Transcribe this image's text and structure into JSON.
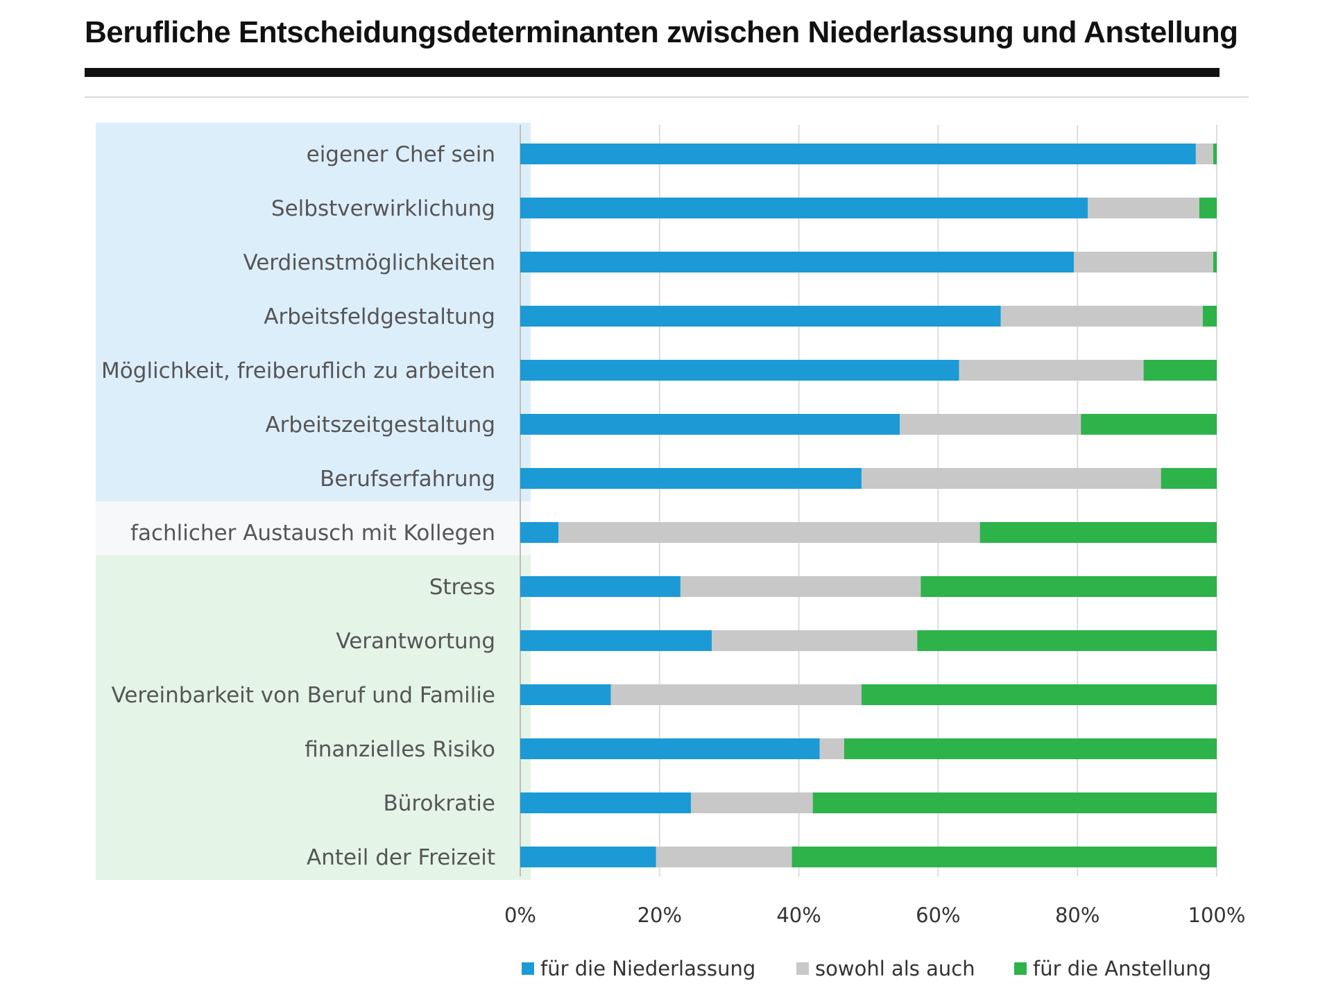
{
  "chart_data": {
    "type": "bar",
    "orientation": "horizontal",
    "stacked": "percent",
    "title": "Berufliche Entscheidungsdeterminanten zwischen Niederlassung und Anstellung",
    "categories": [
      "eigener Chef sein",
      "Selbstverwirklichung",
      "Verdienstmöglichkeiten",
      "Arbeitsfeldgestaltung",
      "Möglichkeit, freiberuflich zu arbeiten",
      "Arbeitszeitgestaltung",
      "Berufserfahrung",
      "fachlicher Austausch mit Kollegen",
      "Stress",
      "Verantwortung",
      "Vereinbarkeit von Beruf und Familie",
      "finanzielles Risiko",
      "Bürokratie",
      "Anteil der Freizeit"
    ],
    "series": [
      {
        "name": "für die Niederlassung",
        "color": "#1b9ad6",
        "values": [
          97,
          81.5,
          79.5,
          69,
          63,
          54.5,
          49,
          5.5,
          23,
          27.5,
          13,
          43,
          24.5,
          19.5
        ]
      },
      {
        "name": "sowohl als auch",
        "color": "#c8c8c8",
        "values": [
          2.5,
          16,
          20,
          29,
          26.5,
          26,
          43,
          60.5,
          34.5,
          29.5,
          36,
          3.5,
          17.5,
          19.5
        ]
      },
      {
        "name": "für die Anstellung",
        "color": "#2db34a",
        "values": [
          0.5,
          2.5,
          0.5,
          2,
          10.5,
          19.5,
          8,
          34,
          42.5,
          43,
          51,
          53.5,
          58,
          61
        ]
      }
    ],
    "xlim": [
      0,
      100
    ],
    "x_ticks": [
      "0%",
      "20%",
      "40%",
      "60%",
      "80%",
      "100%"
    ],
    "grid": "vertical",
    "legend": "bottom",
    "category_groups": [
      {
        "from": 0,
        "to": 6,
        "color": "#ddeefb"
      },
      {
        "from": 7,
        "to": 7,
        "color": "#f6f8f9"
      },
      {
        "from": 8,
        "to": 13,
        "color": "#e4f4e6"
      }
    ]
  }
}
